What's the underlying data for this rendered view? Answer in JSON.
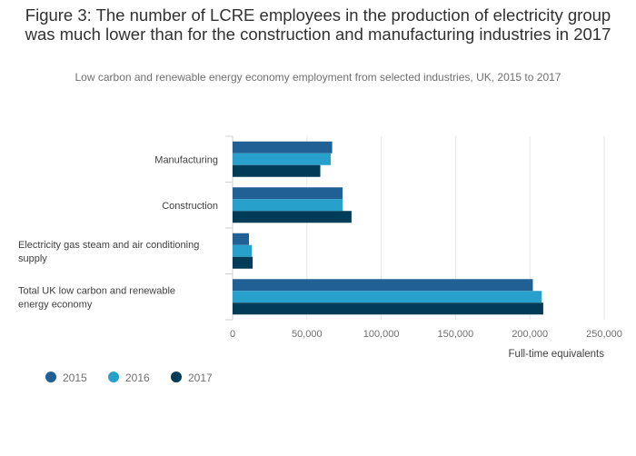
{
  "title": "Figure 3: The number of LCRE employees in the production of electricity group was much lower than for the construction and manufacturing industries in 2017",
  "subtitle": "Low carbon and renewable energy economy employment from selected industries, UK, 2015 to 2017",
  "chart_data": {
    "type": "bar",
    "orientation": "horizontal",
    "categories": [
      [
        "Manufacturing"
      ],
      [
        "Construction"
      ],
      [
        "Electricity gas steam and air conditioning",
        "supply"
      ],
      [
        "Total UK low carbon and renewable",
        "energy economy"
      ]
    ],
    "series": [
      {
        "name": "2015",
        "color": "#206095",
        "values": [
          67000,
          74000,
          11000,
          202000
        ]
      },
      {
        "name": "2016",
        "color": "#27a0cc",
        "values": [
          66000,
          74000,
          13000,
          208000
        ]
      },
      {
        "name": "2017",
        "color": "#003c57",
        "values": [
          59000,
          80000,
          13500,
          209000
        ]
      }
    ],
    "xlim": [
      0,
      250000
    ],
    "xticks": [
      "0",
      "50,000",
      "100,000",
      "150,000",
      "200,000",
      "250,000"
    ],
    "xtick_values": [
      0,
      50000,
      100000,
      150000,
      200000,
      250000
    ],
    "xlabel": "Full-time equivalents",
    "legend_position": "bottom-left",
    "grid": true
  }
}
